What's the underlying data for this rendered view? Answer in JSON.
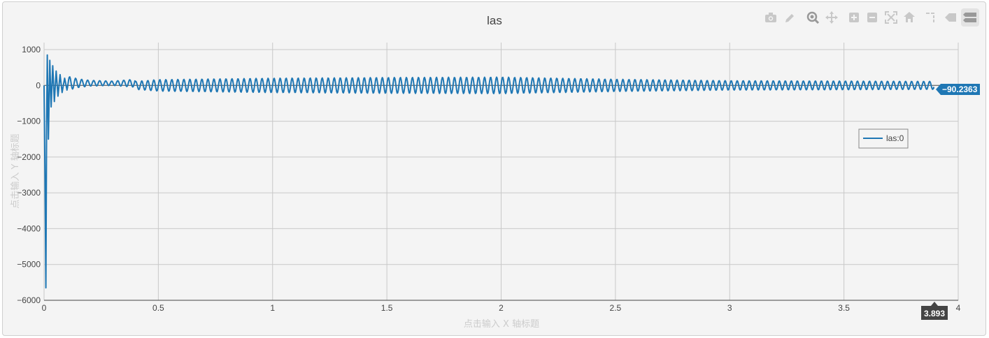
{
  "chart_data": {
    "type": "line",
    "title": "las",
    "xlabel": "点击输入 X 轴标题",
    "ylabel": "点击输入 Y 轴标题",
    "xlim": [
      0,
      4
    ],
    "ylim": [
      -6000,
      1000
    ],
    "x_ticks": [
      "0",
      "0.5",
      "1",
      "1.5",
      "2",
      "2.5",
      "3",
      "3.5",
      "4"
    ],
    "y_ticks": [
      "1000",
      "0",
      "−1000",
      "−2000",
      "−3000",
      "−4000",
      "−5000",
      "−6000"
    ],
    "grid": true,
    "legend_position": "right",
    "series": [
      {
        "name": "las:0",
        "color": "#1f77b4",
        "description_points": {
          "x": [
            0,
            0.005,
            0.01,
            0.015,
            0.02,
            0.03,
            0.04,
            0.05,
            0.06,
            0.08,
            0.1,
            0.15,
            0.2,
            0.3,
            0.4,
            0.5,
            1.0,
            1.5,
            2.0,
            2.5,
            3.0,
            3.5,
            3.9
          ],
          "y_envelope": [
            0,
            -4000,
            -5650,
            850,
            -1500,
            700,
            -600,
            500,
            -450,
            300,
            200,
            120,
            80,
            60,
            110,
            160,
            200,
            220,
            230,
            170,
            130,
            120,
            110
          ]
        }
      }
    ],
    "hover": {
      "x_value": "3.893",
      "y_value": "−90.2363"
    }
  },
  "modebar": {
    "icons": [
      "camera-icon",
      "pencil-icon",
      "zoom-icon",
      "pan-icon",
      "zoom-in-icon",
      "zoom-out-icon",
      "autoscale-icon",
      "home-icon",
      "spike-lines-icon",
      "hover-closest-icon",
      "hover-compare-icon"
    ]
  }
}
